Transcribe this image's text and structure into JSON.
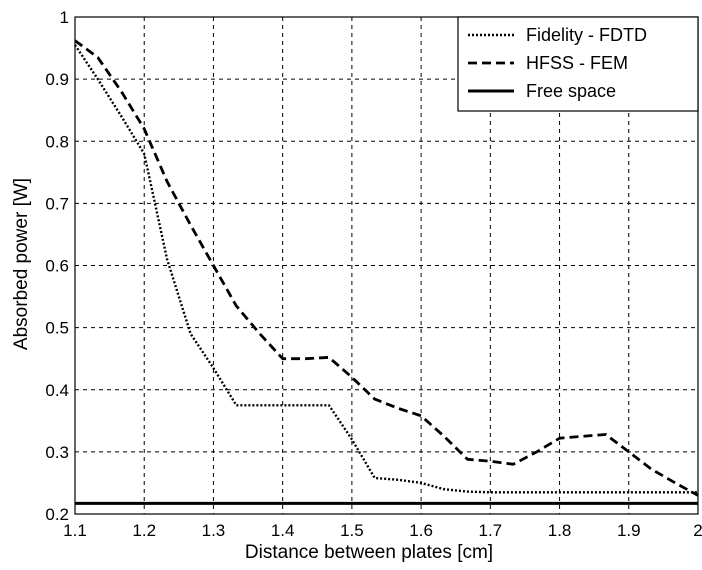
{
  "chart_data": {
    "type": "line",
    "title": "",
    "xlabel": "Distance between plates [cm]",
    "ylabel": "Absorbed power [W]",
    "xlim": [
      1.1,
      2.0
    ],
    "ylim": [
      0.2,
      1.0
    ],
    "xticks": [
      "1.1",
      "1.2",
      "1.3",
      "1.4",
      "1.5",
      "1.6",
      "1.7",
      "1.8",
      "1.9",
      "2"
    ],
    "yticks": [
      "0.2",
      "0.3",
      "0.4",
      "0.5",
      "0.6",
      "0.7",
      "0.8",
      "0.9",
      "1"
    ],
    "grid": true,
    "legend_position": "top-right",
    "series": [
      {
        "name": "Fidelity - FDTD",
        "style": "dotted",
        "color": "#000000",
        "x": [
          1.1,
          1.133,
          1.167,
          1.2,
          1.233,
          1.267,
          1.3,
          1.333,
          1.367,
          1.4,
          1.433,
          1.467,
          1.5,
          1.533,
          1.567,
          1.6,
          1.633,
          1.667,
          1.7,
          1.733,
          1.767,
          1.8,
          1.833,
          1.867,
          1.9,
          1.933,
          1.967,
          2.0
        ],
        "y": [
          0.955,
          0.9,
          0.84,
          0.78,
          0.61,
          0.49,
          0.435,
          0.375,
          0.375,
          0.375,
          0.375,
          0.375,
          0.32,
          0.258,
          0.255,
          0.25,
          0.24,
          0.236,
          0.235,
          0.235,
          0.235,
          0.235,
          0.235,
          0.235,
          0.235,
          0.235,
          0.235,
          0.235
        ]
      },
      {
        "name": "HFSS - FEM",
        "style": "dashed",
        "color": "#000000",
        "x": [
          1.1,
          1.133,
          1.167,
          1.2,
          1.233,
          1.267,
          1.3,
          1.333,
          1.367,
          1.4,
          1.433,
          1.467,
          1.5,
          1.533,
          1.567,
          1.6,
          1.633,
          1.667,
          1.7,
          1.733,
          1.767,
          1.8,
          1.833,
          1.867,
          1.9,
          1.933,
          1.967,
          2.0
        ],
        "y": [
          0.962,
          0.935,
          0.88,
          0.82,
          0.735,
          0.665,
          0.6,
          0.535,
          0.49,
          0.45,
          0.45,
          0.452,
          0.42,
          0.385,
          0.37,
          0.358,
          0.325,
          0.288,
          0.285,
          0.28,
          0.3,
          0.322,
          0.325,
          0.328,
          0.3,
          0.272,
          0.25,
          0.23
        ]
      },
      {
        "name": "Free space",
        "style": "solid",
        "color": "#000000",
        "x": [
          1.1,
          2.0
        ],
        "y": [
          0.217,
          0.217
        ]
      }
    ]
  }
}
